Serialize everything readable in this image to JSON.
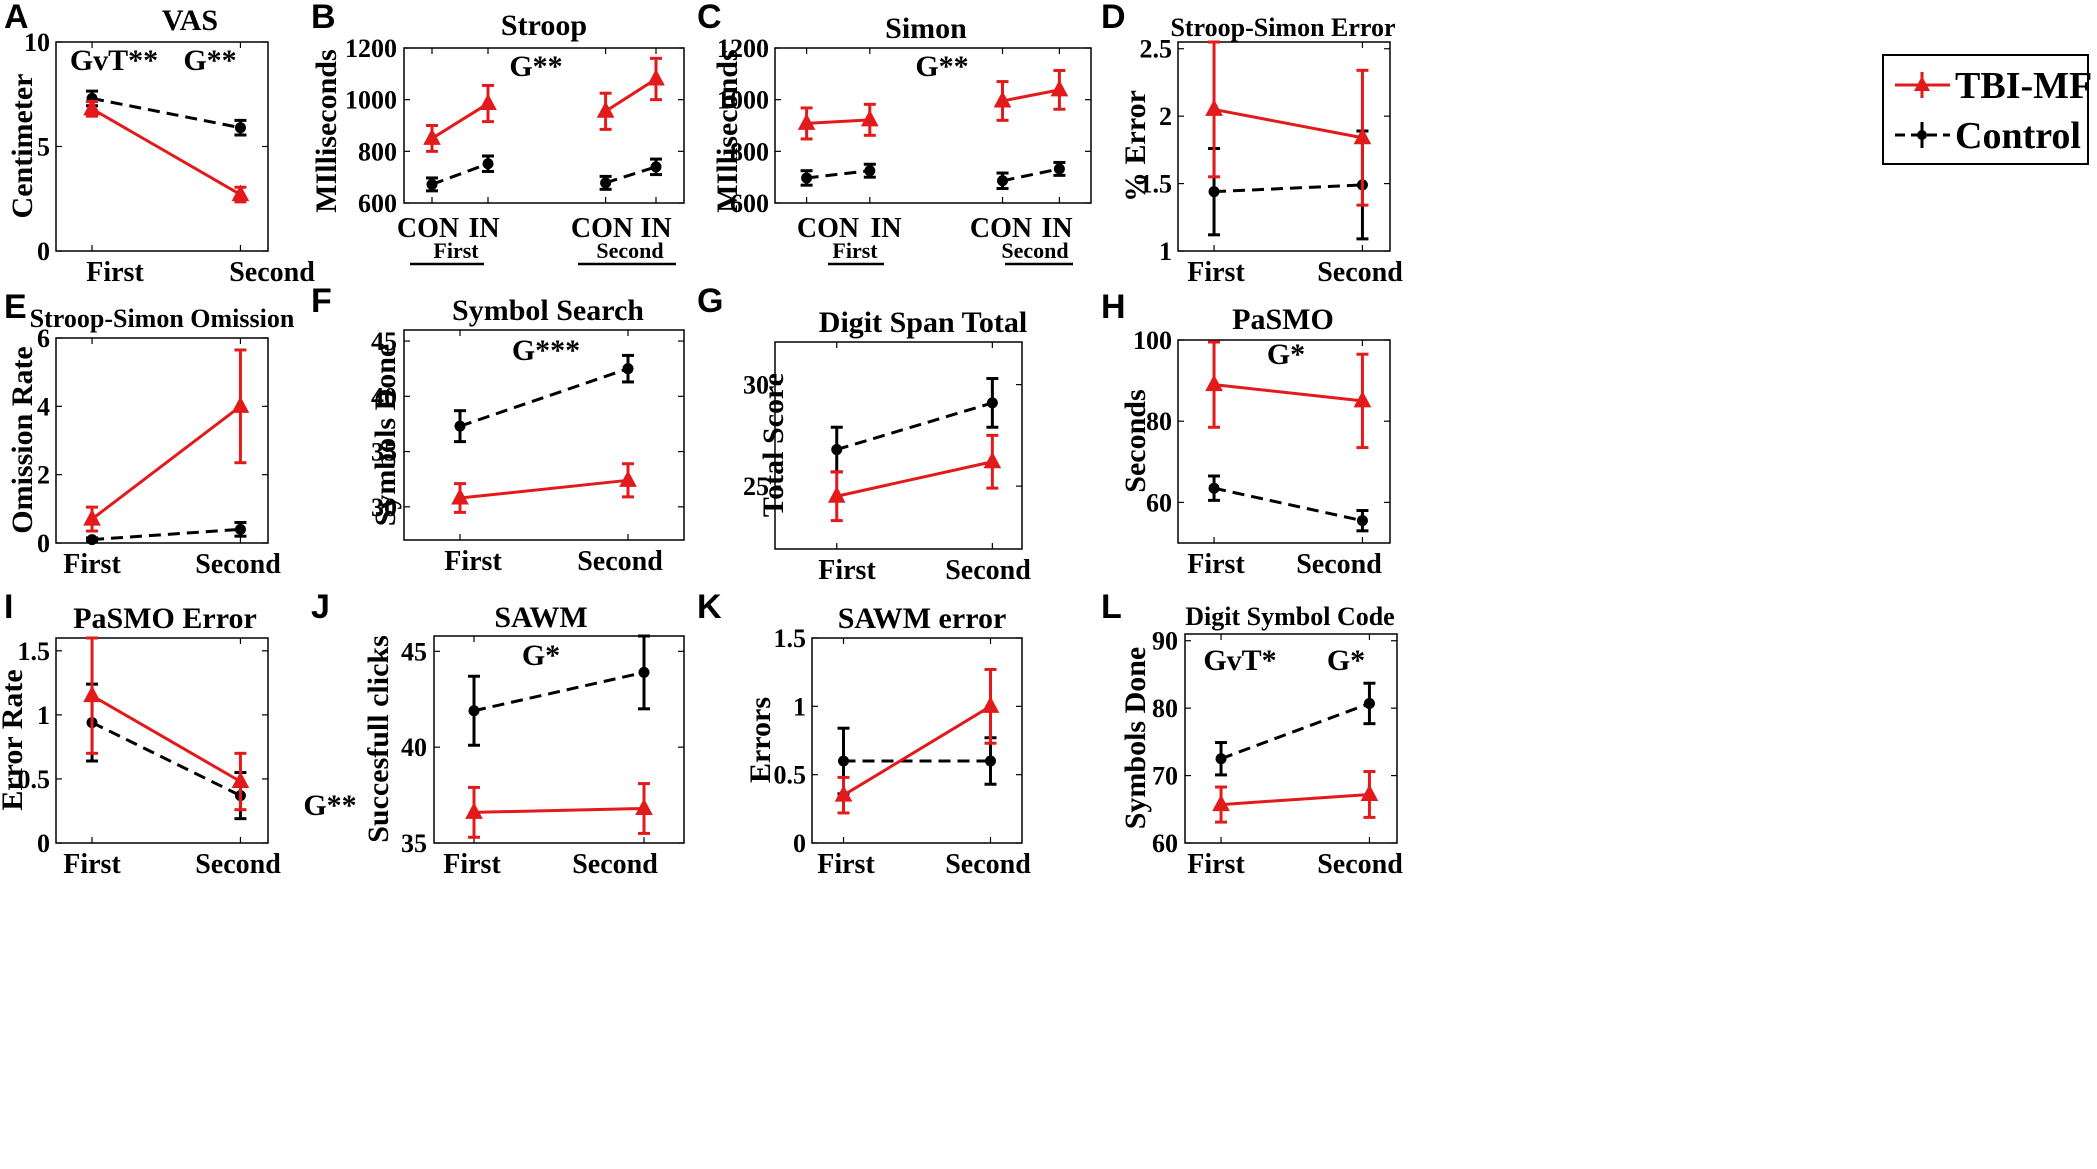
{
  "colors": {
    "tbi": "#e31a1c",
    "control": "#000000"
  },
  "legend": {
    "entries": [
      "TBI-MF",
      "Control"
    ]
  },
  "chart_data": [
    {
      "id": "A",
      "type": "line",
      "title": "VAS",
      "ylabel": "Centimeter",
      "categories": [
        "First",
        "Second"
      ],
      "ylim": [
        0,
        10
      ],
      "yticks": [
        0,
        5,
        10
      ],
      "annotations": [
        "GvT**",
        "G**"
      ],
      "series": [
        {
          "name": "TBI-MF",
          "values": [
            6.8,
            2.7
          ],
          "err": [
            0.35,
            0.35
          ]
        },
        {
          "name": "Control",
          "values": [
            7.3,
            5.9
          ],
          "err": [
            0.35,
            0.35
          ]
        }
      ]
    },
    {
      "id": "B",
      "type": "line",
      "title": "Stroop",
      "ylabel": "MIlliseconds",
      "categories": [
        "CON",
        "IN",
        "CON",
        "IN"
      ],
      "groups": [
        "First",
        "Second"
      ],
      "ylim": [
        600,
        1200
      ],
      "yticks": [
        600,
        800,
        1000,
        1200
      ],
      "annotations": [
        "G**"
      ],
      "series": [
        {
          "name": "TBI-MF",
          "values": [
            850,
            985,
            955,
            1080
          ],
          "err": [
            50,
            70,
            70,
            80
          ]
        },
        {
          "name": "Control",
          "values": [
            672,
            752,
            678,
            740
          ],
          "err": [
            25,
            30,
            25,
            30
          ]
        }
      ]
    },
    {
      "id": "C",
      "type": "line",
      "title": "Simon",
      "ylabel": "MIlliseconds",
      "categories": [
        "CON",
        "IN",
        "CON",
        "IN"
      ],
      "groups": [
        "First",
        "Second"
      ],
      "ylim": [
        600,
        1200
      ],
      "yticks": [
        600,
        800,
        1000,
        1200
      ],
      "annotations": [
        "G**"
      ],
      "series": [
        {
          "name": "TBI-MF",
          "values": [
            908,
            922,
            995,
            1038
          ],
          "err": [
            60,
            60,
            75,
            75
          ]
        },
        {
          "name": "Control",
          "values": [
            697,
            725,
            686,
            732
          ],
          "err": [
            28,
            25,
            30,
            25
          ]
        }
      ]
    },
    {
      "id": "D",
      "type": "line",
      "title": "Stroop-Simon Error",
      "ylabel": "% Error",
      "categories": [
        "First",
        "Second"
      ],
      "ylim": [
        1,
        2.55
      ],
      "yticks": [
        1,
        1.5,
        2,
        2.5
      ],
      "annotations": [],
      "series": [
        {
          "name": "TBI-MF",
          "values": [
            2.05,
            1.84
          ],
          "err": [
            0.5,
            0.5
          ]
        },
        {
          "name": "Control",
          "values": [
            1.44,
            1.49
          ],
          "err": [
            0.32,
            0.4
          ]
        }
      ]
    },
    {
      "id": "E",
      "type": "line",
      "title": "Stroop-Simon Omission",
      "ylabel": "Omission Rate",
      "categories": [
        "First",
        "Second"
      ],
      "ylim": [
        0,
        6
      ],
      "yticks": [
        0,
        2,
        4,
        6
      ],
      "annotations": [],
      "series": [
        {
          "name": "TBI-MF",
          "values": [
            0.7,
            4.0
          ],
          "err": [
            0.35,
            1.65
          ]
        },
        {
          "name": "Control",
          "values": [
            0.1,
            0.4
          ],
          "err": [
            0.05,
            0.2
          ]
        }
      ]
    },
    {
      "id": "F",
      "type": "line",
      "title": "Symbol Search",
      "ylabel": "Symbols Done",
      "categories": [
        "First",
        "Second"
      ],
      "ylim": [
        27,
        46
      ],
      "yticks": [
        30,
        35,
        40,
        45
      ],
      "annotations": [
        "G***"
      ],
      "series": [
        {
          "name": "TBI-MF",
          "values": [
            30.8,
            32.4
          ],
          "err": [
            1.3,
            1.5
          ]
        },
        {
          "name": "Control",
          "values": [
            37.3,
            42.5
          ],
          "err": [
            1.4,
            1.2
          ]
        }
      ]
    },
    {
      "id": "G",
      "type": "line",
      "title": "Digit Span Total",
      "ylabel": "Total Score",
      "categories": [
        "First",
        "Second"
      ],
      "ylim": [
        21.9,
        32.1
      ],
      "yticks": [
        25,
        30
      ],
      "annotations": [],
      "series": [
        {
          "name": "TBI-MF",
          "values": [
            24.5,
            26.2
          ],
          "err": [
            1.2,
            1.3
          ]
        },
        {
          "name": "Control",
          "values": [
            26.8,
            29.1
          ],
          "err": [
            1.1,
            1.2
          ]
        }
      ]
    },
    {
      "id": "H",
      "type": "line",
      "title": "PaSMO",
      "ylabel": "Seconds",
      "categories": [
        "First",
        "Second"
      ],
      "ylim": [
        50,
        100
      ],
      "yticks": [
        60,
        80,
        100
      ],
      "annotations": [
        "G*"
      ],
      "series": [
        {
          "name": "TBI-MF",
          "values": [
            89,
            85
          ],
          "err": [
            10.5,
            11.5
          ]
        },
        {
          "name": "Control",
          "values": [
            63.5,
            55.5
          ],
          "err": [
            3.0,
            2.5
          ]
        }
      ]
    },
    {
      "id": "I",
      "type": "line",
      "title": "PaSMO Error",
      "ylabel": "Error Rate",
      "categories": [
        "First",
        "Second"
      ],
      "ylim": [
        0,
        1.6
      ],
      "yticks": [
        0,
        0.5,
        1,
        1.5
      ],
      "annotations": [],
      "series": [
        {
          "name": "TBI-MF",
          "values": [
            1.15,
            0.48
          ],
          "err": [
            0.45,
            0.22
          ]
        },
        {
          "name": "Control",
          "values": [
            0.94,
            0.37
          ],
          "err": [
            0.3,
            0.18
          ]
        }
      ]
    },
    {
      "id": "J",
      "type": "line",
      "title": "SAWM",
      "ylabel": "Succesfull clicks",
      "categories": [
        "First",
        "Second"
      ],
      "ylim": [
        35,
        45.8
      ],
      "yticks": [
        35,
        40,
        45
      ],
      "annotations": [
        "G*",
        "G**"
      ],
      "series": [
        {
          "name": "TBI-MF",
          "values": [
            36.6,
            36.8
          ],
          "err": [
            1.3,
            1.3
          ]
        },
        {
          "name": "Control",
          "values": [
            41.9,
            43.9
          ],
          "err": [
            1.8,
            1.9
          ]
        }
      ]
    },
    {
      "id": "K",
      "type": "line",
      "title": "SAWM error",
      "ylabel": "Errors",
      "categories": [
        "First",
        "Second"
      ],
      "ylim": [
        0,
        1.5
      ],
      "yticks": [
        0,
        0.5,
        1,
        1.5
      ],
      "annotations": [],
      "series": [
        {
          "name": "TBI-MF",
          "values": [
            0.35,
            1.0
          ],
          "err": [
            0.13,
            0.27
          ]
        },
        {
          "name": "Control",
          "values": [
            0.6,
            0.6
          ],
          "err": [
            0.24,
            0.17
          ]
        }
      ]
    },
    {
      "id": "L",
      "type": "line",
      "title": "Digit Symbol Code",
      "ylabel": "Symbols Done",
      "categories": [
        "First",
        "Second"
      ],
      "ylim": [
        60,
        91
      ],
      "yticks": [
        60,
        70,
        80,
        90
      ],
      "annotations": [
        "GvT*",
        "G*"
      ],
      "series": [
        {
          "name": "TBI-MF",
          "values": [
            65.7,
            67.2
          ],
          "err": [
            2.6,
            3.4
          ]
        },
        {
          "name": "Control",
          "values": [
            72.5,
            80.7
          ],
          "err": [
            2.4,
            3.0
          ]
        }
      ]
    }
  ]
}
